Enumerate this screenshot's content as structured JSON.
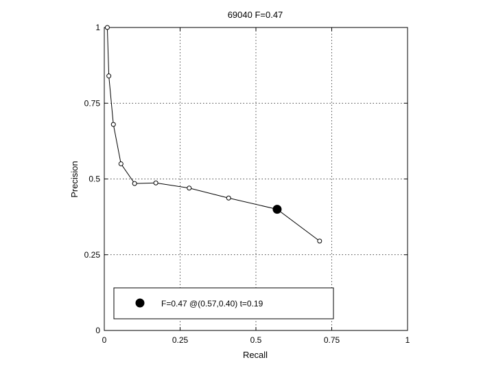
{
  "chart_data": {
    "type": "line",
    "title": "69040 F=0.47",
    "xlabel": "Recall",
    "ylabel": "Precision",
    "xlim": [
      0,
      1
    ],
    "ylim": [
      0,
      1
    ],
    "xticks": [
      0,
      0.25,
      0.5,
      0.75,
      1
    ],
    "xtick_labels": [
      "0",
      "0.25",
      "0.5",
      "0.75",
      "1"
    ],
    "yticks": [
      0,
      0.25,
      0.5,
      0.75,
      1
    ],
    "ytick_labels": [
      "0",
      "0.25",
      "0.5",
      "0.75",
      "1"
    ],
    "grid": true,
    "series": [
      {
        "x": [
          0.01,
          0.015,
          0.03,
          0.055,
          0.1,
          0.17,
          0.28,
          0.41,
          0.57,
          0.71
        ],
        "y": [
          1.0,
          0.84,
          0.68,
          0.55,
          0.485,
          0.487,
          0.47,
          0.437,
          0.4,
          0.295
        ]
      }
    ],
    "best_point": {
      "x": 0.57,
      "y": 0.4
    },
    "legend": {
      "position": "bottom",
      "text": "F=0.47 @(0.57,0.40) t=0.19"
    }
  }
}
